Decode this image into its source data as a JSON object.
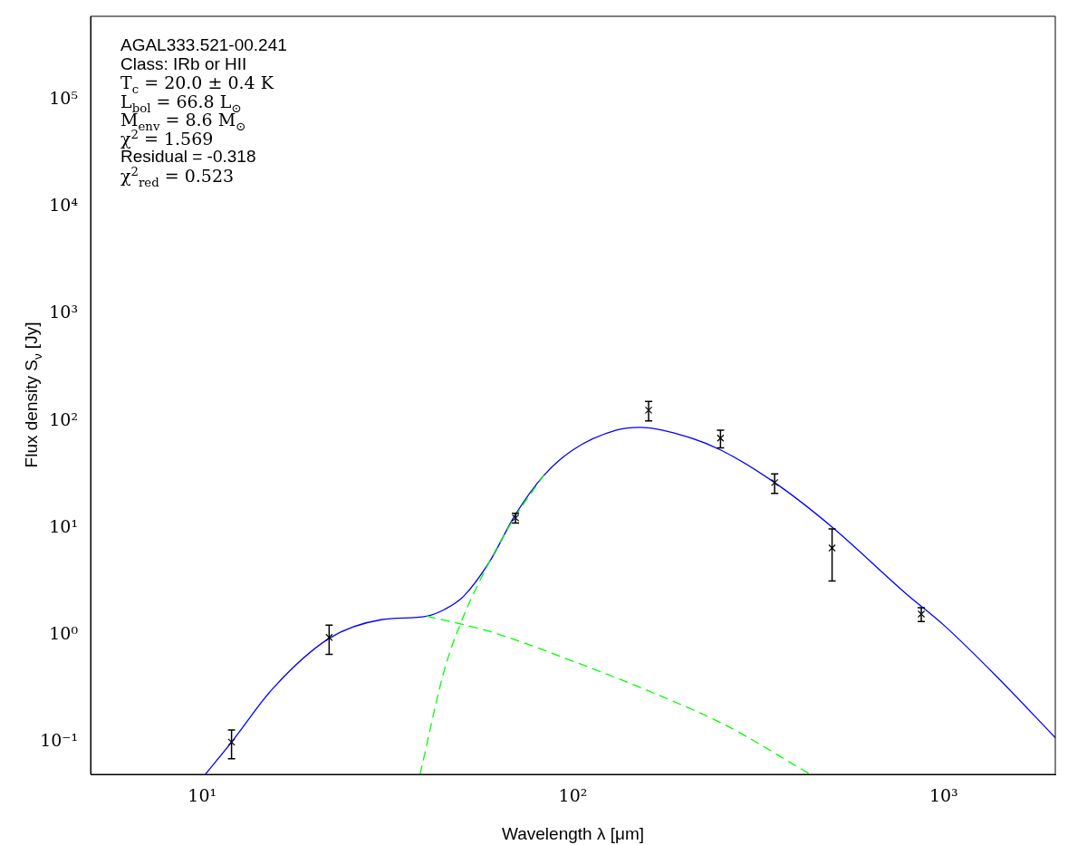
{
  "chart_data": {
    "type": "scatter",
    "xlabel": "Wavelength λ [μm]",
    "ylabel": "Flux density S$_{ν}$ [Jy]",
    "xlim": [
      5,
      2000
    ],
    "ylim": [
      0.05,
      600000
    ],
    "log": "xy",
    "grid": false,
    "legend": false,
    "xticks": [
      {
        "value": 10,
        "label": "10¹"
      },
      {
        "value": 100,
        "label": "10²"
      },
      {
        "value": 1000,
        "label": "10³"
      }
    ],
    "yticks": [
      {
        "value": 0.1,
        "label": "10⁻¹"
      },
      {
        "value": 1,
        "label": "10⁰"
      },
      {
        "value": 10,
        "label": "10¹"
      },
      {
        "value": 100,
        "label": "10²"
      },
      {
        "value": 1000,
        "label": "10³"
      },
      {
        "value": 10000,
        "label": "10⁴"
      },
      {
        "value": 100000,
        "label": "10⁵"
      }
    ],
    "annotations": [
      "AGAL333.521-00.241",
      "Class: IRb or HII",
      "T$_{c}$ = 20.0 ± 0.4 K",
      "L$_{bol}$ = 66.8 L$_{⊙}$",
      "M$_{env}$ = 8.6 M$_{⊙}$",
      "χ$^{2}$ = 1.569",
      "Residual = -0.318",
      "χ$^{2}$$_{red}$ = 0.523"
    ],
    "series": [
      {
        "type": "line",
        "color": "#00ff00",
        "line_style": "dashed",
        "marker": "none",
        "x": [
          40.3,
          59.6,
          100,
          164,
          257,
          437
        ],
        "values": [
          1.5,
          1.08,
          0.57,
          0.29,
          0.145,
          0.05
        ]
      },
      {
        "type": "line",
        "color": "#00ff00",
        "line_style": "dashed",
        "marker": "none",
        "x": [
          38.7,
          45,
          50.7,
          59.6,
          70,
          83.5
        ],
        "values": [
          0.05,
          0.47,
          1.5,
          4.85,
          12.9,
          31
        ]
      },
      {
        "type": "line",
        "color": "#0000ff",
        "line_style": "solid",
        "marker": "none",
        "x": [
          10.2,
          12,
          15.5,
          22,
          30.4,
          40.3,
          45,
          50.7,
          59.6,
          70,
          83.5,
          100,
          131,
          152,
          194,
          250,
          350,
          500,
          790,
          1000,
          1380,
          2000
        ],
        "values": [
          0.05,
          0.1,
          0.316,
          0.93,
          1.39,
          1.5,
          1.73,
          2.3,
          4.85,
          13.4,
          31,
          53.6,
          82,
          87,
          74.6,
          53.6,
          26.5,
          10.2,
          2.45,
          1.24,
          0.42,
          0.11
        ]
      },
      {
        "type": "scatter",
        "color": "#000000",
        "marker": "cross",
        "x": [
          12,
          22,
          70,
          160,
          250,
          350,
          500,
          870
        ],
        "values": [
          0.1,
          0.95,
          12.4,
          126,
          69,
          26.5,
          6.5,
          1.57
        ],
        "errors": [
          0.03,
          0.29,
          1.3,
          26,
          13,
          5.5,
          3.3,
          0.23
        ]
      }
    ]
  }
}
